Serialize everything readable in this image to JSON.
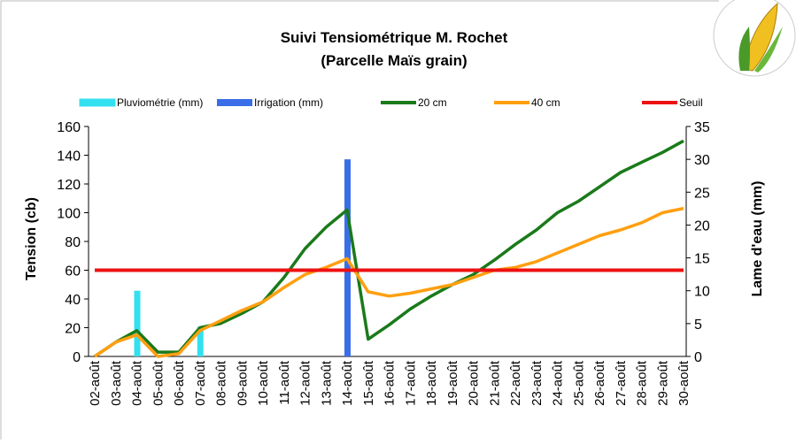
{
  "chart_data": {
    "type": "line",
    "title": "Suivi Tensiométrique M. Rochet",
    "subtitle": "(Parcelle Maïs grain)",
    "y_label": "Tension (cb)",
    "y2_label": "Lame d'eau (mm)",
    "categories": [
      "02-août",
      "03-août",
      "04-août",
      "05-août",
      "06-août",
      "07-août",
      "08-août",
      "09-août",
      "10-août",
      "11-août",
      "12-août",
      "13-août",
      "14-août",
      "15-août",
      "16-août",
      "17-août",
      "18-août",
      "19-août",
      "20-août",
      "21-août",
      "22-août",
      "23-août",
      "24-août",
      "25-août",
      "26-août",
      "27-août",
      "28-août",
      "29-août",
      "30-août"
    ],
    "ylim": [
      0,
      160
    ],
    "yticks": [
      0,
      20,
      40,
      60,
      80,
      100,
      120,
      140,
      160
    ],
    "y2lim": [
      0,
      35
    ],
    "y2ticks": [
      0,
      5,
      10,
      15,
      20,
      25,
      30,
      35
    ],
    "series": [
      {
        "name": "Pluviométrie (mm)",
        "type": "bar",
        "axis": "y2",
        "color": "#33e0f0",
        "values": [
          null,
          null,
          10,
          null,
          null,
          4.5,
          null,
          null,
          null,
          null,
          null,
          null,
          null,
          null,
          null,
          null,
          null,
          null,
          null,
          null,
          null,
          null,
          null,
          null,
          null,
          null,
          null,
          null,
          null
        ]
      },
      {
        "name": "Irrigation (mm)",
        "type": "bar",
        "axis": "y2",
        "color": "#3a6ee8",
        "values": [
          null,
          null,
          null,
          null,
          null,
          null,
          null,
          null,
          null,
          null,
          null,
          null,
          30,
          null,
          null,
          null,
          null,
          null,
          null,
          null,
          null,
          null,
          null,
          null,
          null,
          null,
          null,
          null,
          null
        ]
      },
      {
        "name": "20 cm",
        "type": "line",
        "color": "#1a7a1a",
        "values": [
          0,
          10,
          18,
          3,
          3,
          20,
          23,
          30,
          38,
          55,
          75,
          90,
          102,
          12,
          22,
          33,
          42,
          50,
          57,
          67,
          78,
          88,
          100,
          108,
          118,
          128,
          135,
          142,
          150
        ]
      },
      {
        "name": "40 cm",
        "type": "line",
        "color": "#ff9f10",
        "values": [
          0,
          10,
          15,
          0,
          2,
          18,
          25,
          32,
          38,
          48,
          57,
          62,
          68,
          45,
          42,
          44,
          47,
          50,
          55,
          60,
          62,
          66,
          72,
          78,
          84,
          88,
          93,
          100,
          103
        ]
      },
      {
        "name": "Seuil",
        "type": "line",
        "color": "#ee1111",
        "values": [
          60,
          60,
          60,
          60,
          60,
          60,
          60,
          60,
          60,
          60,
          60,
          60,
          60,
          60,
          60,
          60,
          60,
          60,
          60,
          60,
          60,
          60,
          60,
          60,
          60,
          60,
          60,
          60,
          60
        ]
      }
    ]
  }
}
